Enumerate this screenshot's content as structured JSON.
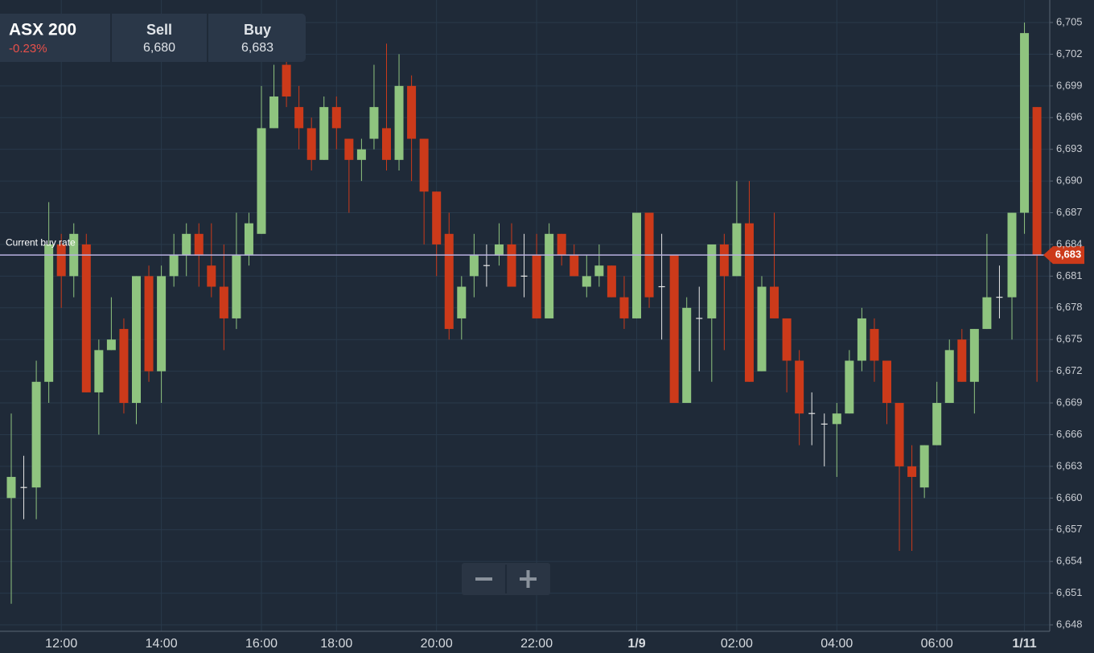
{
  "header": {
    "name": "ASX 200",
    "change": "-0.23%",
    "sell_label": "Sell",
    "sell": "6,680",
    "buy_label": "Buy",
    "buy": "6,683"
  },
  "chart_data": {
    "type": "candlestick",
    "categories": [
      null,
      null,
      null,
      null,
      "12:00",
      null,
      null,
      null,
      null,
      null,
      null,
      null,
      "14:00",
      null,
      null,
      null,
      null,
      null,
      null,
      null,
      "16:00",
      null,
      null,
      null,
      null,
      null,
      "18:00",
      null,
      null,
      null,
      null,
      null,
      null,
      null,
      "20:00",
      null,
      null,
      null,
      null,
      null,
      null,
      null,
      "22:00",
      null,
      null,
      null,
      null,
      null,
      null,
      null,
      "1/9",
      null,
      null,
      null,
      null,
      null,
      null,
      null,
      "02:00",
      null,
      null,
      null,
      null,
      null,
      null,
      null,
      "04:00",
      null,
      null,
      null,
      null,
      null,
      null,
      null,
      "06:00",
      null,
      null,
      null,
      null,
      null,
      null,
      "1/11",
      null
    ],
    "open": [
      6660,
      6661,
      6661,
      6671,
      6684,
      6681,
      6684,
      6670,
      6674,
      6676,
      6669,
      6681,
      6672,
      6681,
      6683,
      6685,
      6682,
      6680,
      6677,
      6683,
      6685,
      6695,
      6701,
      6697,
      6695,
      6692,
      6697,
      6694,
      6692,
      6694,
      6695,
      6692,
      6699,
      6694,
      6689,
      6685,
      6677,
      6681,
      6682,
      6683,
      6684,
      6681,
      6683,
      6677,
      6685,
      6683,
      6680,
      6681,
      6682,
      6679,
      6677,
      6687,
      6680,
      6683,
      6669,
      6677,
      6677,
      6684,
      6681,
      6686,
      6672,
      6680,
      6677,
      6673,
      6668,
      6667,
      6667,
      6668,
      6673,
      6676,
      6673,
      6669,
      6663,
      6661,
      6665,
      6669,
      6675,
      6671,
      6676,
      6679,
      6679,
      6687,
      6697
    ],
    "high": [
      6668,
      6664,
      6673,
      6688,
      6685,
      6686,
      6685,
      6675,
      6679,
      6677,
      6681,
      6682,
      6682,
      6685,
      6686,
      6686,
      6686,
      6684,
      6687,
      6687,
      6699,
      6701,
      6702,
      6699,
      6696,
      6698,
      6698,
      6694,
      6694,
      6701,
      6703,
      6702,
      6700,
      6694,
      6689,
      6687,
      6681,
      6685,
      6684,
      6686,
      6686,
      6685,
      6685,
      6686,
      6685,
      6684,
      6683,
      6684,
      6682,
      6681,
      6687,
      6687,
      6685,
      6683,
      6679,
      6680,
      6684,
      6685,
      6690,
      6690,
      6681,
      6687,
      6677,
      6674,
      6670,
      6668,
      6669,
      6674,
      6678,
      6677,
      6673,
      6669,
      6665,
      6665,
      6671,
      6675,
      6676,
      6676,
      6685,
      6682,
      6687,
      6705,
      6697
    ],
    "low": [
      6650,
      6658,
      6658,
      6669,
      6678,
      6679,
      6670,
      6666,
      6674,
      6668,
      6667,
      6671,
      6669,
      6680,
      6681,
      6680,
      6679,
      6674,
      6676,
      6682,
      6685,
      6695,
      6697,
      6693,
      6691,
      6692,
      6693,
      6687,
      6690,
      6693,
      6691,
      6691,
      6690,
      6684,
      6681,
      6675,
      6675,
      6679,
      6680,
      6682,
      6680,
      6679,
      6677,
      6677,
      6682,
      6681,
      6679,
      6680,
      6679,
      6676,
      6677,
      6678,
      6675,
      6669,
      6669,
      6672,
      6671,
      6674,
      6681,
      6671,
      6672,
      6677,
      6670,
      6665,
      6665,
      6663,
      6662,
      6668,
      6672,
      6671,
      6667,
      6655,
      6655,
      6660,
      6665,
      6669,
      6671,
      6668,
      6676,
      6677,
      6675,
      6685,
      6671
    ],
    "close": [
      6662,
      6661,
      6671,
      6684,
      6681,
      6685,
      6670,
      6674,
      6675,
      6669,
      6681,
      6672,
      6681,
      6683,
      6685,
      6683,
      6680,
      6677,
      6683,
      6686,
      6695,
      6698,
      6698,
      6695,
      6692,
      6697,
      6695,
      6692,
      6693,
      6697,
      6692,
      6699,
      6694,
      6689,
      6684,
      6676,
      6680,
      6683,
      6682,
      6684,
      6680,
      6681,
      6677,
      6685,
      6683,
      6681,
      6681,
      6682,
      6679,
      6677,
      6687,
      6679,
      6680,
      6669,
      6678,
      6677,
      6684,
      6681,
      6686,
      6671,
      6680,
      6677,
      6673,
      6668,
      6668,
      6667,
      6668,
      6673,
      6677,
      6673,
      6669,
      6663,
      6662,
      6665,
      6669,
      6674,
      6671,
      6676,
      6679,
      6679,
      6687,
      6704,
      6683
    ],
    "up_color": "#8fc47f",
    "down_color": "#cc3a1a",
    "ylim": [
      6648,
      6705
    ],
    "yticks": [
      {
        "value": 6648,
        "label": "6,648"
      },
      {
        "value": 6651,
        "label": "6,651"
      },
      {
        "value": 6654,
        "label": "6,654"
      },
      {
        "value": 6657,
        "label": "6,657"
      },
      {
        "value": 6660,
        "label": "6,660"
      },
      {
        "value": 6663,
        "label": "6,663"
      },
      {
        "value": 6666,
        "label": "6,666"
      },
      {
        "value": 6669,
        "label": "6,669"
      },
      {
        "value": 6672,
        "label": "6,672"
      },
      {
        "value": 6675,
        "label": "6,675"
      },
      {
        "value": 6678,
        "label": "6,678"
      },
      {
        "value": 6681,
        "label": "6,681"
      },
      {
        "value": 6684,
        "label": "6,684"
      },
      {
        "value": 6687,
        "label": "6,687"
      },
      {
        "value": 6690,
        "label": "6,690"
      },
      {
        "value": 6693,
        "label": "6,693"
      },
      {
        "value": 6696,
        "label": "6,696"
      },
      {
        "value": 6699,
        "label": "6,699"
      },
      {
        "value": 6702,
        "label": "6,702"
      },
      {
        "value": 6705,
        "label": "6,705"
      }
    ],
    "grid": true,
    "current_rate": {
      "label": "Current buy rate",
      "value": 6683,
      "value_label": "6,683",
      "color": "#b9b0e0"
    }
  }
}
